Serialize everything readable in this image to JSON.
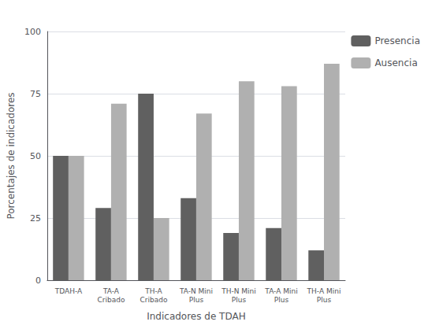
{
  "chart_data": {
    "type": "bar",
    "categories": [
      "TDAH-A",
      "TA-A\nCribado",
      "TH-A\nCribado",
      "TA-N Mini\nPlus",
      "TH-N Mini\nPlus",
      "TA-A Mini\nPlus",
      "TH-A Mini\nPlus"
    ],
    "series": [
      {
        "name": "Presencia",
        "color": "#606060",
        "values": [
          50,
          29,
          75,
          33,
          19,
          21,
          12
        ]
      },
      {
        "name": "Ausencia",
        "color": "#b0b0b0",
        "values": [
          50,
          71,
          25,
          67,
          80,
          78,
          87
        ]
      }
    ],
    "xlabel": "Indicadores de TDAH",
    "ylabel": "Porcentajes de indicadores",
    "ylim": [
      0,
      100
    ],
    "yticks": [
      0,
      25,
      50,
      75,
      100
    ],
    "grid": true,
    "legend": "right"
  }
}
